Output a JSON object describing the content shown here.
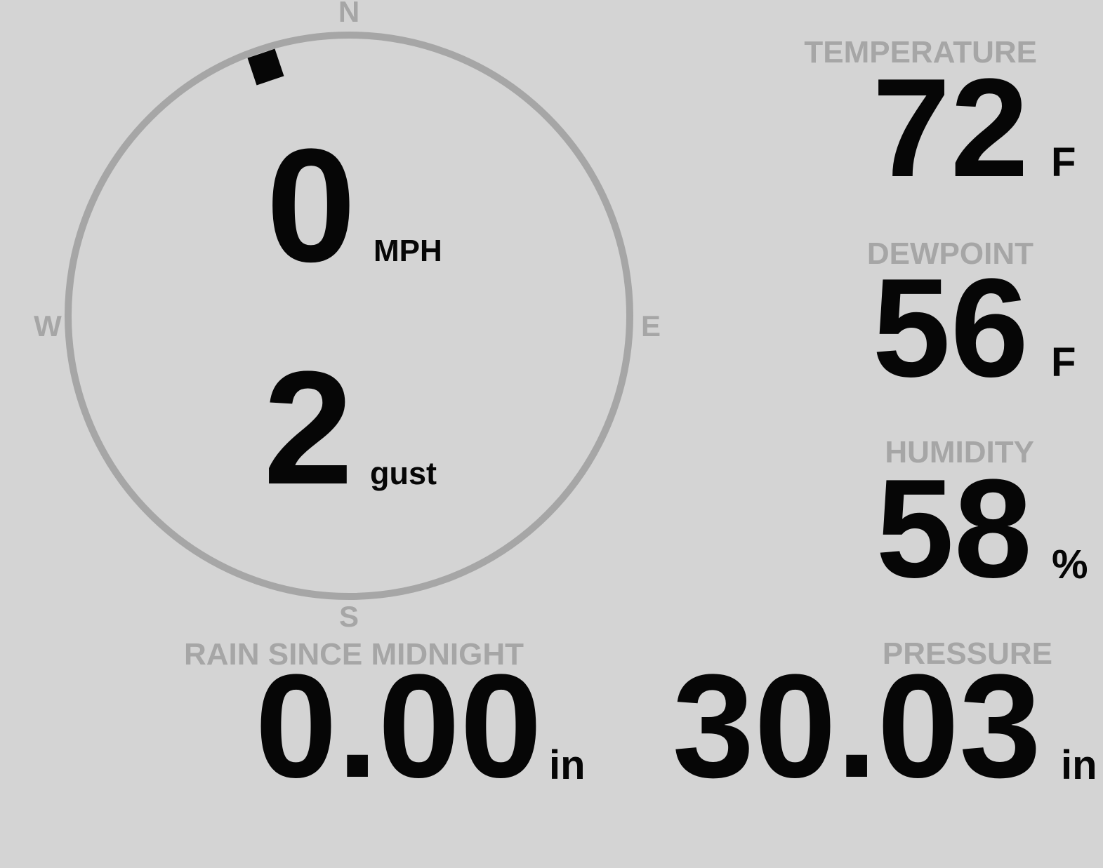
{
  "colors": {
    "background": "#d4d4d4",
    "muted_gray": "#a6a6a6",
    "value_black": "#060606"
  },
  "compass": {
    "cardinals": {
      "north": "N",
      "east": "E",
      "south": "S",
      "west": "W"
    },
    "wind_speed": "0",
    "wind_speed_unit": "MPH",
    "wind_gust": "2",
    "wind_gust_unit": "gust",
    "wind_direction_deg": 341.5
  },
  "metrics": {
    "temperature": {
      "label": "TEMPERATURE",
      "value": "72",
      "unit": "F"
    },
    "dewpoint": {
      "label": "DEWPOINT",
      "value": "56",
      "unit": "F"
    },
    "humidity": {
      "label": "HUMIDITY",
      "value": "58",
      "unit": "%"
    },
    "rain": {
      "label": "RAIN SINCE MIDNIGHT",
      "value": "0.00",
      "unit": "in"
    },
    "pressure": {
      "label": "PRESSURE",
      "value": "30.03",
      "unit": "in"
    }
  }
}
